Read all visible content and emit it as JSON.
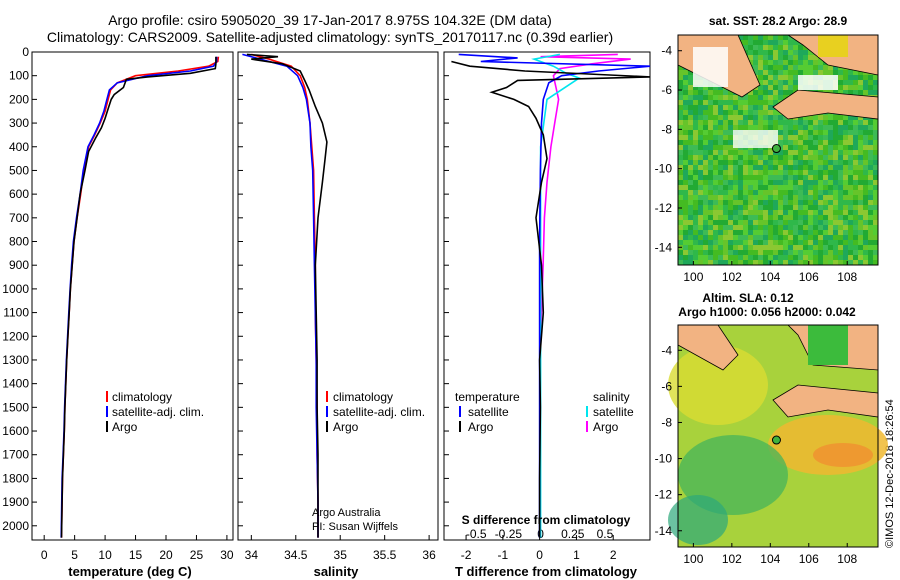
{
  "title_line1": "Argo profile: csiro 5905020_39 17-Jan-2017 8.975S 104.32E (DM data)",
  "title_line2": "Climatology: CARS2009. Satellite-adjusted climatology: synTS_20170117.nc (0.39d earlier)",
  "stamp": "©IMOS 12-Dec-2018 18:26:54",
  "colors": {
    "climatology": "#ff0000",
    "satellite": "#0000ff",
    "argo": "#000000",
    "sat_salinity": "#00e5ee",
    "argo_salinity_diff": "#ff00ff"
  },
  "depth_axis": {
    "ylim": [
      2060,
      0
    ],
    "ticks": [
      0,
      100,
      200,
      300,
      400,
      500,
      600,
      700,
      800,
      900,
      1000,
      1100,
      1200,
      1300,
      1400,
      1500,
      1600,
      1700,
      1800,
      1900,
      2000
    ]
  },
  "panel_temp": {
    "xlabel": "temperature (deg C)",
    "xticks": [
      "0",
      "5",
      "10",
      "15",
      "20",
      "25",
      "30"
    ],
    "legend": [
      "climatology",
      "satellite-adj. clim.",
      "Argo"
    ]
  },
  "panel_sal": {
    "xlabel": "salinity",
    "xticks": [
      "34",
      "34.5",
      "35",
      "35.5",
      "36"
    ],
    "legend": [
      "climatology",
      "satellite-adj. clim.",
      "Argo"
    ],
    "credit1": "Argo Australia",
    "credit2": "PI: Susan Wijffels"
  },
  "panel_diff": {
    "xlabel": "T difference from climatology",
    "toplabel": "S difference from climatology",
    "xticks": [
      "-2",
      "-1",
      "0",
      "1",
      "2"
    ],
    "sticks": [
      "-0.5",
      "-0.25",
      "0",
      "0.25",
      "0.5"
    ],
    "legend_t_title": "temperature",
    "legend_s_title": "salinity",
    "legend_t": [
      "satellite",
      "Argo"
    ],
    "legend_s": [
      "satellite",
      "Argo"
    ]
  },
  "map_sst": {
    "title": "sat. SST: 28.2 Argo: 28.9",
    "xticks": [
      "100",
      "102",
      "104",
      "106",
      "108"
    ],
    "yticks": [
      "-4",
      "-6",
      "-8",
      "-10",
      "-12",
      "-14"
    ]
  },
  "map_sla": {
    "title1": "Altim. SLA: 0.12",
    "title2": "Argo h1000: 0.056 h2000: 0.042",
    "xticks": [
      "100",
      "102",
      "104",
      "106",
      "108"
    ],
    "yticks": [
      "-4",
      "-6",
      "-8",
      "-10",
      "-12",
      "-14"
    ]
  },
  "chart_data": [
    {
      "type": "line",
      "title": "",
      "xlabel": "temperature (deg C)",
      "ylabel": "",
      "xlim": [
        -2,
        31
      ],
      "ylim": [
        2060,
        0
      ],
      "series": [
        {
          "name": "climatology",
          "x": [
            28.6,
            28.5,
            27,
            22,
            15,
            12,
            10.9,
            10.5,
            10,
            9.2,
            8.3,
            7.3,
            6.5,
            6,
            5.4,
            4.9,
            4.6,
            4.3,
            4.1,
            3.9,
            3.7,
            3.55,
            3.4,
            3.3,
            3.15,
            3.0,
            2.85
          ],
          "y": [
            20,
            40,
            60,
            80,
            100,
            130,
            160,
            200,
            250,
            300,
            350,
            400,
            500,
            600,
            700,
            800,
            900,
            1000,
            1100,
            1200,
            1300,
            1400,
            1500,
            1600,
            1700,
            1800,
            2050
          ]
        },
        {
          "name": "satellite-adj. clim.",
          "x": [
            28.3,
            28.3,
            27.8,
            24,
            17,
            12,
            10.7,
            10.3,
            9.8,
            9.1,
            8.2,
            7.2,
            6.4,
            5.9,
            5.3,
            4.8,
            4.5,
            4.25,
            4.05,
            3.85,
            3.65,
            3.5,
            3.35,
            3.25,
            3.1,
            2.95,
            2.8
          ],
          "y": [
            20,
            40,
            60,
            80,
            100,
            130,
            160,
            200,
            250,
            300,
            350,
            400,
            500,
            600,
            700,
            800,
            900,
            1000,
            1100,
            1200,
            1300,
            1400,
            1500,
            1600,
            1700,
            1800,
            2050
          ]
        },
        {
          "name": "Argo",
          "x": [
            28.2,
            28.2,
            28.1,
            24,
            17,
            13.5,
            13,
            11.5,
            11,
            10.5,
            10,
            9.4,
            8.5,
            7.3,
            6.7,
            5.9,
            5.4,
            4.9,
            4.6,
            4.3,
            4.1,
            3.9,
            3.7,
            3.55,
            3.4,
            3.3,
            3.15,
            3.0,
            2.85
          ],
          "y": [
            20,
            50,
            70,
            90,
            105,
            115,
            150,
            180,
            200,
            240,
            280,
            320,
            360,
            420,
            500,
            600,
            700,
            800,
            900,
            1000,
            1100,
            1200,
            1300,
            1400,
            1500,
            1600,
            1700,
            1800,
            2050
          ]
        }
      ]
    },
    {
      "type": "line",
      "title": "",
      "xlabel": "salinity",
      "ylabel": "",
      "xlim": [
        33.85,
        36.1
      ],
      "ylim": [
        2060,
        0
      ],
      "series": [
        {
          "name": "climatology",
          "x": [
            34.0,
            34.2,
            34.45,
            34.55,
            34.6,
            34.63,
            34.66,
            34.68,
            34.7,
            34.71,
            34.72,
            34.72,
            34.73,
            34.74,
            34.74,
            34.75,
            34.75
          ],
          "y": [
            10,
            30,
            60,
            100,
            150,
            200,
            300,
            400,
            500,
            700,
            900,
            1100,
            1300,
            1500,
            1700,
            1900,
            2050
          ]
        },
        {
          "name": "satellite-adj. clim.",
          "x": [
            33.9,
            34.1,
            34.4,
            34.52,
            34.58,
            34.62,
            34.66,
            34.67,
            34.69,
            34.7,
            34.71,
            34.72,
            34.73,
            34.73,
            34.74,
            34.75,
            34.75
          ],
          "y": [
            10,
            30,
            60,
            100,
            150,
            200,
            300,
            400,
            500,
            700,
            900,
            1100,
            1300,
            1500,
            1700,
            1900,
            2050
          ]
        },
        {
          "name": "Argo",
          "x": [
            33.95,
            34.3,
            34.0,
            34.35,
            34.55,
            34.6,
            34.65,
            34.72,
            34.8,
            34.85,
            34.83,
            34.8,
            34.75,
            34.72,
            34.73,
            34.74,
            34.74,
            34.75,
            34.75
          ],
          "y": [
            10,
            20,
            30,
            50,
            80,
            120,
            160,
            230,
            300,
            380,
            450,
            550,
            700,
            900,
            1100,
            1300,
            1500,
            1700,
            2050
          ]
        }
      ]
    },
    {
      "type": "line",
      "title": "",
      "xlabel": "T difference from climatology",
      "ylabel": "",
      "xlim": [
        -2.6,
        3.0
      ],
      "ylim": [
        2060,
        0
      ],
      "series": [
        {
          "name": "satellite",
          "x": [
            -2.2,
            -0.6,
            -1.6,
            3.0,
            1.6,
            0.6,
            0.25,
            0.1,
            0.05,
            0.02,
            0.0,
            0.0,
            0.0,
            0.0
          ],
          "y": [
            10,
            25,
            40,
            60,
            80,
            100,
            130,
            200,
            300,
            500,
            800,
            1200,
            1600,
            2050
          ]
        },
        {
          "name": "Argo",
          "x": [
            -2.4,
            -1.9,
            -0.4,
            3.0,
            -0.6,
            -0.9,
            -1.3,
            -0.7,
            -0.3,
            -0.1,
            0.1,
            0.2,
            0.05,
            -0.1,
            0.05,
            0.1,
            0.0,
            0.02,
            0.0,
            0.0
          ],
          "y": [
            40,
            60,
            80,
            105,
            120,
            150,
            170,
            200,
            230,
            280,
            350,
            450,
            550,
            700,
            900,
            1100,
            1300,
            1500,
            1800,
            2050
          ]
        }
      ]
    },
    {
      "type": "line",
      "title": "",
      "xlabel": "S difference from climatology",
      "ylabel": "",
      "xlim": [
        -0.75,
        0.85
      ],
      "ylim": [
        2060,
        0
      ],
      "series": [
        {
          "name": "satellite",
          "x": [
            0.15,
            -0.05,
            0.1,
            0.2,
            0.3,
            0.05,
            0.0,
            0.0,
            0.0,
            0.0,
            0.0
          ],
          "y": [
            10,
            30,
            60,
            90,
            110,
            200,
            400,
            800,
            1200,
            1600,
            2050
          ]
        },
        {
          "name": "Argo",
          "x": [
            0.6,
            0.0,
            0.7,
            0.4,
            0.15,
            0.1,
            0.12,
            0.14,
            0.11,
            0.08,
            0.05,
            0.03,
            0.02,
            0.0
          ],
          "y": [
            10,
            20,
            30,
            50,
            70,
            100,
            150,
            200,
            300,
            400,
            550,
            700,
            900,
            1200
          ]
        }
      ]
    }
  ]
}
